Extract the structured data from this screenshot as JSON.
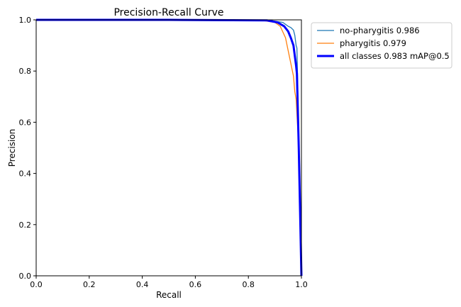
{
  "chart_data": {
    "type": "line",
    "title": "Precision-Recall Curve",
    "xlabel": "Recall",
    "ylabel": "Precision",
    "xlim": [
      0,
      1
    ],
    "ylim": [
      0,
      1
    ],
    "x_ticks": [
      "0.0",
      "0.2",
      "0.4",
      "0.6",
      "0.8",
      "1.0"
    ],
    "y_ticks": [
      "0.0",
      "0.2",
      "0.4",
      "0.6",
      "0.8",
      "1.0"
    ],
    "grid": false,
    "legend_position": "outside-top-right",
    "series": [
      {
        "name": "no-pharygitis 0.986",
        "color": "#1f77b4",
        "line_weight": "thin",
        "points": [
          [
            0,
            1.0
          ],
          [
            0.5,
            1.0
          ],
          [
            0.88,
            0.998
          ],
          [
            0.93,
            0.99
          ],
          [
            0.95,
            0.975
          ],
          [
            0.96,
            0.97
          ],
          [
            0.97,
            0.96
          ],
          [
            0.975,
            0.94
          ],
          [
            0.98,
            0.9
          ],
          [
            0.983,
            0.89
          ],
          [
            0.985,
            0.8
          ],
          [
            0.99,
            0.5
          ],
          [
            0.995,
            0.2
          ],
          [
            1.0,
            0.0
          ]
        ]
      },
      {
        "name": "pharygitis 0.979",
        "color": "#ff7f0e",
        "line_weight": "thin",
        "points": [
          [
            0,
            1.0
          ],
          [
            0.5,
            1.0
          ],
          [
            0.85,
            0.998
          ],
          [
            0.9,
            0.99
          ],
          [
            0.92,
            0.975
          ],
          [
            0.94,
            0.93
          ],
          [
            0.95,
            0.88
          ],
          [
            0.96,
            0.83
          ],
          [
            0.97,
            0.78
          ],
          [
            0.975,
            0.72
          ],
          [
            0.98,
            0.69
          ],
          [
            0.99,
            0.5
          ],
          [
            1.0,
            0.0
          ]
        ]
      },
      {
        "name": "all classes 0.983 mAP@0.5",
        "color": "#0000ff",
        "line_weight": "thick",
        "points": [
          [
            0,
            1.0
          ],
          [
            0.5,
            1.0
          ],
          [
            0.87,
            0.998
          ],
          [
            0.91,
            0.99
          ],
          [
            0.935,
            0.975
          ],
          [
            0.95,
            0.955
          ],
          [
            0.96,
            0.93
          ],
          [
            0.97,
            0.9
          ],
          [
            0.975,
            0.86
          ],
          [
            0.98,
            0.82
          ],
          [
            0.983,
            0.79
          ],
          [
            0.99,
            0.5
          ],
          [
            0.995,
            0.25
          ],
          [
            1.0,
            0.0
          ]
        ]
      }
    ]
  }
}
